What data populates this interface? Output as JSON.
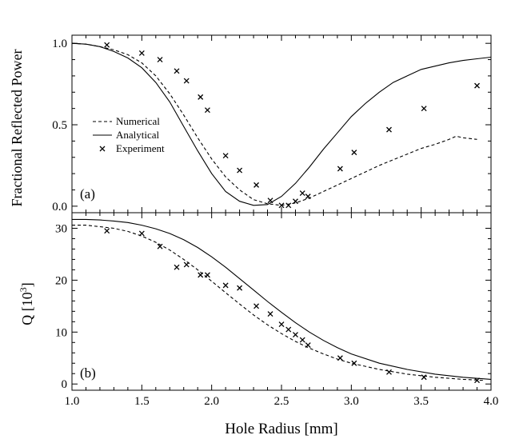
{
  "chart_data": [
    {
      "type": "line",
      "panel_label": "(a)",
      "ylabel": "Fractional Reflected Power",
      "xlim": [
        1.0,
        4.0
      ],
      "ylim": [
        -0.04,
        1.05
      ],
      "yticks": [
        0.0,
        0.5,
        1.0
      ],
      "ytick_labels": [
        "0.0",
        "0.5",
        "1.0"
      ],
      "legend": {
        "position": "middle-left",
        "entries": [
          {
            "label": "Numerical",
            "style": "dashed"
          },
          {
            "label": "Analytical",
            "style": "solid"
          },
          {
            "label": "Experiment",
            "style": "marker"
          }
        ]
      },
      "series": [
        {
          "name": "Numerical",
          "style": "dashed",
          "x": [
            1.0,
            1.1,
            1.2,
            1.3,
            1.4,
            1.5,
            1.6,
            1.7,
            1.8,
            1.9,
            2.0,
            2.1,
            2.2,
            2.3,
            2.4,
            2.5,
            2.6,
            2.7,
            2.8,
            2.9,
            3.0,
            3.1,
            3.2,
            3.3,
            3.4,
            3.5,
            3.6,
            3.7,
            3.75,
            3.8,
            3.9
          ],
          "y": [
            1.0,
            0.995,
            0.98,
            0.96,
            0.93,
            0.88,
            0.8,
            0.69,
            0.56,
            0.42,
            0.29,
            0.18,
            0.1,
            0.04,
            0.015,
            0.005,
            0.02,
            0.05,
            0.09,
            0.13,
            0.17,
            0.21,
            0.25,
            0.285,
            0.32,
            0.355,
            0.38,
            0.41,
            0.43,
            0.42,
            0.41
          ]
        },
        {
          "name": "Analytical",
          "style": "solid",
          "x": [
            1.0,
            1.1,
            1.2,
            1.3,
            1.4,
            1.5,
            1.6,
            1.7,
            1.8,
            1.9,
            2.0,
            2.1,
            2.2,
            2.3,
            2.4,
            2.5,
            2.6,
            2.7,
            2.8,
            2.9,
            3.0,
            3.1,
            3.2,
            3.3,
            3.4,
            3.5,
            3.6,
            3.7,
            3.8,
            3.9,
            4.0
          ],
          "y": [
            1.0,
            0.995,
            0.98,
            0.95,
            0.91,
            0.85,
            0.76,
            0.64,
            0.49,
            0.34,
            0.2,
            0.09,
            0.03,
            0.005,
            0.01,
            0.06,
            0.14,
            0.24,
            0.35,
            0.45,
            0.55,
            0.63,
            0.7,
            0.76,
            0.8,
            0.84,
            0.86,
            0.88,
            0.895,
            0.905,
            0.915
          ]
        },
        {
          "name": "Experiment",
          "style": "marker",
          "x": [
            1.25,
            1.5,
            1.63,
            1.75,
            1.82,
            1.92,
            1.97,
            2.1,
            2.2,
            2.32,
            2.42,
            2.5,
            2.55,
            2.6,
            2.65,
            2.69,
            2.92,
            3.02,
            3.27,
            3.52,
            3.9
          ],
          "y": [
            0.99,
            0.94,
            0.9,
            0.83,
            0.77,
            0.67,
            0.59,
            0.31,
            0.22,
            0.13,
            0.035,
            0.005,
            0.005,
            0.03,
            0.08,
            0.06,
            0.23,
            0.33,
            0.47,
            0.6,
            0.74
          ]
        }
      ]
    },
    {
      "type": "line",
      "panel_label": "(b)",
      "ylabel": "Q [10",
      "ylabel_sup": "3",
      "ylabel_end": "]",
      "xlabel": "Hole Radius [mm]",
      "xlim": [
        1.0,
        4.0
      ],
      "ylim": [
        -1.2,
        33.0
      ],
      "xticks": [
        1.0,
        1.5,
        2.0,
        2.5,
        3.0,
        3.5,
        4.0
      ],
      "xtick_labels": [
        "1.0",
        "1.5",
        "2.0",
        "2.5",
        "3.0",
        "3.5",
        "4.0"
      ],
      "yticks": [
        0,
        10,
        20,
        30
      ],
      "ytick_labels": [
        "0",
        "10",
        "20",
        "30"
      ],
      "series": [
        {
          "name": "Numerical",
          "style": "dashed",
          "x": [
            1.0,
            1.1,
            1.2,
            1.3,
            1.4,
            1.5,
            1.6,
            1.7,
            1.8,
            1.9,
            2.0,
            2.1,
            2.2,
            2.3,
            2.4,
            2.5,
            2.6,
            2.7,
            2.8,
            2.9,
            3.0,
            3.2,
            3.4,
            3.6,
            3.8,
            3.95
          ],
          "y": [
            30.6,
            30.6,
            30.3,
            30.0,
            29.4,
            28.5,
            27.3,
            25.8,
            24.0,
            22.0,
            19.8,
            17.6,
            15.4,
            13.3,
            11.4,
            9.7,
            8.2,
            6.9,
            5.8,
            4.8,
            4.0,
            2.8,
            1.9,
            1.3,
            0.9,
            0.7
          ]
        },
        {
          "name": "Analytical",
          "style": "solid",
          "x": [
            1.0,
            1.1,
            1.2,
            1.3,
            1.4,
            1.5,
            1.6,
            1.7,
            1.8,
            1.9,
            2.0,
            2.1,
            2.2,
            2.3,
            2.4,
            2.5,
            2.6,
            2.7,
            2.8,
            2.9,
            3.0,
            3.2,
            3.4,
            3.6,
            3.8,
            4.0
          ],
          "y": [
            31.7,
            31.7,
            31.6,
            31.4,
            31.1,
            30.6,
            29.9,
            29.0,
            27.8,
            26.3,
            24.5,
            22.5,
            20.3,
            18.1,
            15.9,
            13.8,
            11.8,
            10.0,
            8.4,
            7.0,
            5.8,
            4.0,
            2.8,
            1.9,
            1.3,
            0.9
          ]
        },
        {
          "name": "Experiment",
          "style": "marker",
          "x": [
            1.25,
            1.5,
            1.63,
            1.75,
            1.82,
            1.92,
            1.97,
            2.1,
            2.2,
            2.32,
            2.42,
            2.5,
            2.55,
            2.6,
            2.65,
            2.69,
            2.92,
            3.02,
            3.27,
            3.52,
            3.9
          ],
          "y": [
            29.5,
            29.0,
            26.5,
            22.5,
            23.0,
            21.0,
            21.0,
            19.0,
            18.5,
            15.0,
            13.5,
            11.5,
            10.5,
            9.5,
            8.5,
            7.5,
            5.0,
            4.0,
            2.3,
            1.3,
            0.7
          ]
        }
      ]
    }
  ]
}
